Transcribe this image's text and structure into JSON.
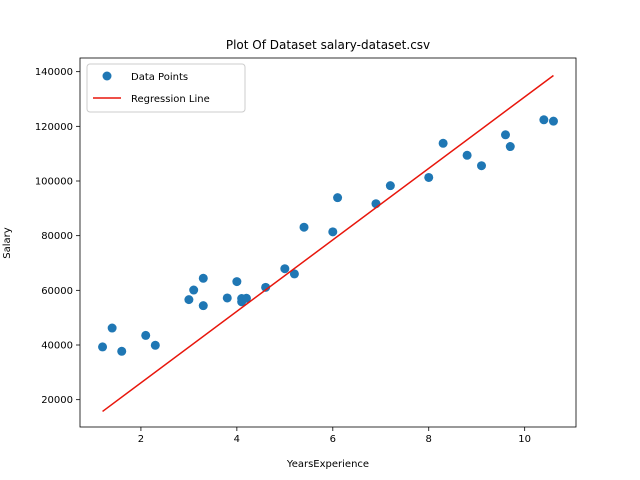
{
  "chart_data": {
    "type": "scatter",
    "title": "Plot Of Dataset salary-dataset.csv",
    "xlabel": "YearsExperience",
    "ylabel": "Salary",
    "xlim": [
      0.73,
      11.07
    ],
    "ylim": [
      10000,
      145000
    ],
    "xticks": [
      2,
      4,
      6,
      8,
      10
    ],
    "yticks": [
      20000,
      40000,
      60000,
      80000,
      100000,
      120000,
      140000
    ],
    "xtick_labels": [
      "2",
      "4",
      "6",
      "8",
      "10"
    ],
    "ytick_labels": [
      "20000",
      "40000",
      "60000",
      "80000",
      "100000",
      "120000",
      "140000"
    ],
    "legend_position": "top-left",
    "grid": false,
    "series": [
      {
        "name": "Data Points",
        "kind": "scatter",
        "color": "#1f77b4",
        "points": [
          [
            1.2,
            39300
          ],
          [
            1.4,
            46200
          ],
          [
            1.6,
            37700
          ],
          [
            2.1,
            43500
          ],
          [
            2.3,
            39900
          ],
          [
            3.0,
            56600
          ],
          [
            3.1,
            60100
          ],
          [
            3.3,
            54400
          ],
          [
            3.3,
            64400
          ],
          [
            3.8,
            57200
          ],
          [
            4.0,
            63200
          ],
          [
            4.1,
            55800
          ],
          [
            4.1,
            57000
          ],
          [
            4.2,
            57100
          ],
          [
            4.6,
            61100
          ],
          [
            5.0,
            67900
          ],
          [
            5.2,
            66000
          ],
          [
            5.4,
            83100
          ],
          [
            6.0,
            81400
          ],
          [
            6.1,
            93900
          ],
          [
            6.9,
            91700
          ],
          [
            7.2,
            98300
          ],
          [
            8.0,
            101300
          ],
          [
            8.3,
            113800
          ],
          [
            8.8,
            109400
          ],
          [
            9.1,
            105600
          ],
          [
            9.6,
            116900
          ],
          [
            9.7,
            112600
          ],
          [
            10.4,
            122400
          ],
          [
            10.6,
            121900
          ]
        ]
      },
      {
        "name": "Regression Line",
        "kind": "line",
        "color": "#e8160c",
        "points": [
          [
            1.2,
            15700
          ],
          [
            10.6,
            138600
          ]
        ]
      }
    ]
  }
}
